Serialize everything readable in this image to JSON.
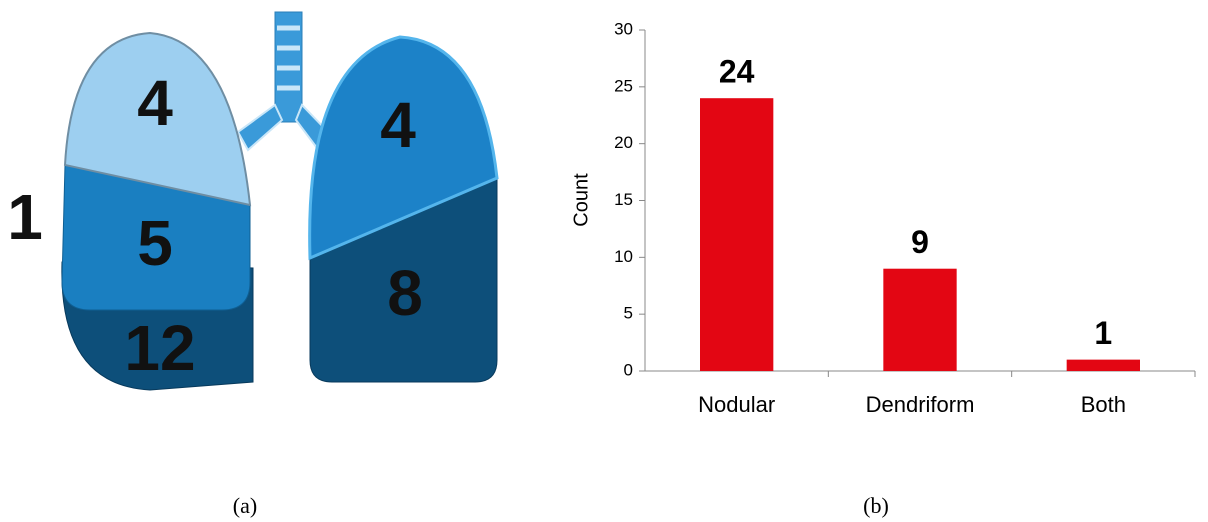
{
  "diagram": {
    "lobes": [
      {
        "value": 4
      },
      {
        "value": 5
      },
      {
        "value": 12
      },
      {
        "value": 1
      },
      {
        "value": 4
      },
      {
        "value": 8
      }
    ],
    "caption": "(a)"
  },
  "chart_data": {
    "type": "bar",
    "caption": "(b)",
    "ylabel": "Count",
    "categories": [
      "Nodular",
      "Dendriform",
      "Both"
    ],
    "values": [
      24,
      9,
      1
    ],
    "color": "#e30613",
    "ylim": [
      0,
      30
    ],
    "yticks": [
      0,
      5,
      10,
      15,
      20,
      25,
      30
    ]
  }
}
